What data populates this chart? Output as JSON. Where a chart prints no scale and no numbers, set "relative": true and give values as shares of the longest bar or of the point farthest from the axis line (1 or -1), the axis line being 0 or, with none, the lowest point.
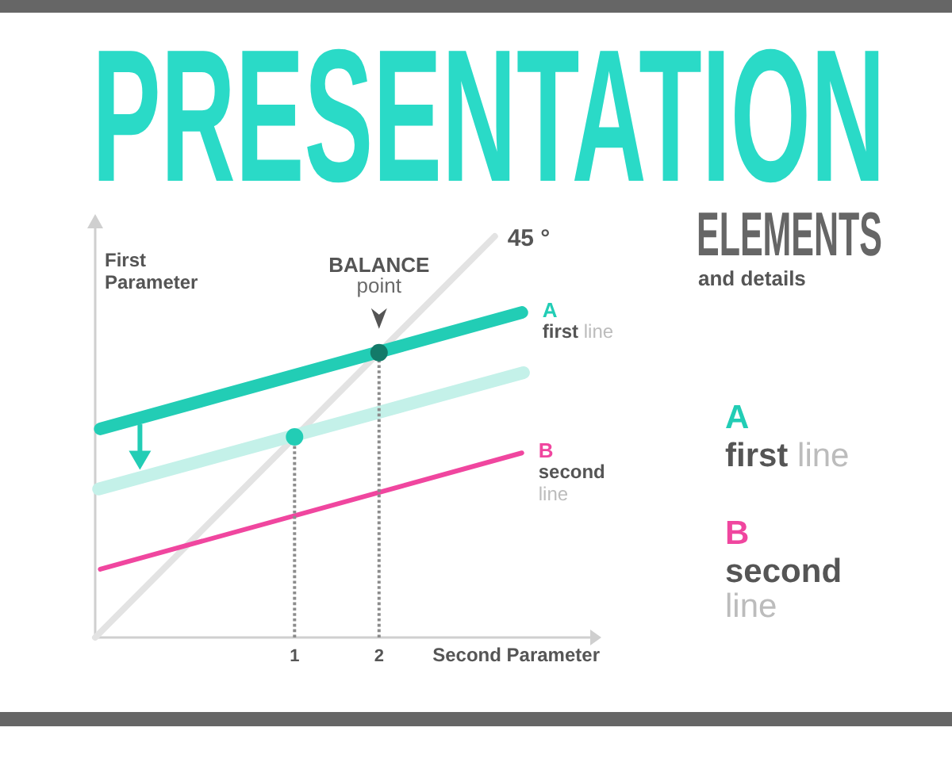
{
  "chart_data": {
    "type": "line",
    "title": "PRESENTATION",
    "subtitle": "ELEMENTS",
    "xlabel": "Second Parameter",
    "ylabel": "First Parameter",
    "annotations": [
      "and details",
      {
        "text": "45 °",
        "x": 3.37,
        "y": 1
      },
      {
        "text": "BALANCE point",
        "x": 2,
        "y": 0.71
      }
    ],
    "relative": true,
    "xlim": [
      -1.36,
      4.5
    ],
    "xticks": [
      1,
      2
    ],
    "legend": "right",
    "series": [
      {
        "color": "#e3e3e3",
        "x": [
          -1.36,
          3.37
        ],
        "values": [
          0,
          1
        ]
      },
      {
        "color": "#c4f1e9",
        "x": [
          -1.32,
          3.71
        ],
        "values": [
          0.37,
          0.66
        ]
      },
      {
        "name": "A first line",
        "color": "#22cdb5",
        "x": [
          -1.3,
          3.69
        ],
        "values": [
          0.52,
          0.81
        ]
      },
      {
        "name": "B second line",
        "color": "#f0469f",
        "x": [
          -1.3,
          3.69
        ],
        "values": [
          0.17,
          0.46
        ]
      },
      {
        "type": "lollipop",
        "marker": "circle",
        "line_style": "dotted",
        "color": "#8c8c8c",
        "colors": [
          "#22cdb5",
          "#137a69"
        ],
        "x": [
          1,
          2
        ],
        "values": [
          0.5,
          0.71
        ]
      }
    ]
  }
}
